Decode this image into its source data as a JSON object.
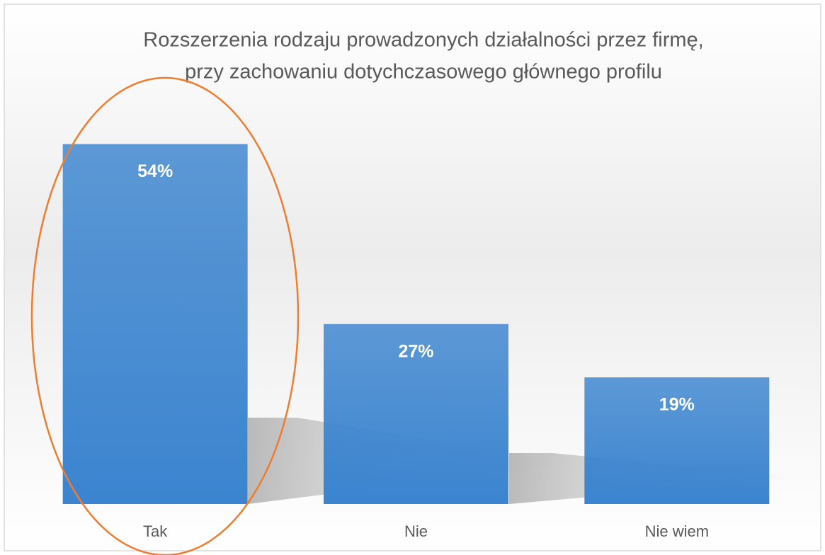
{
  "chart_data": {
    "type": "bar",
    "title": [
      "Rozszerzenia rodzaju prowadzonych działalności przez firmę,",
      "przy zachowaniu dotychczasowego głównego profilu"
    ],
    "categories": [
      "Tak",
      "Nie",
      "Nie wiem"
    ],
    "values": [
      54,
      27,
      19
    ],
    "value_labels": [
      "54%",
      "27%",
      "19%"
    ],
    "color": "#3b84cf",
    "ylim": [
      0,
      60
    ]
  }
}
